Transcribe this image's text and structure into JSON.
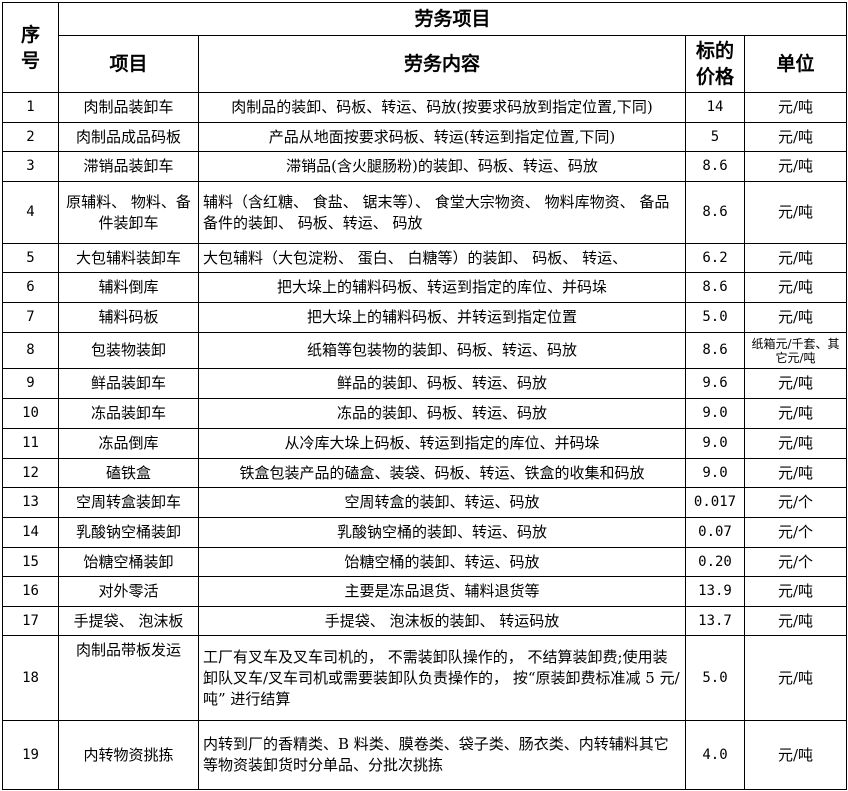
{
  "header": {
    "seq": "序号",
    "group": "劳务项目",
    "item": "项目",
    "content": "劳务内容",
    "price": "标的价格",
    "unit": "单位"
  },
  "rows": [
    {
      "no": "1",
      "item": "肉制品装卸车",
      "content": "肉制品的装卸、码板、转运、码放(按要求码放到指定位置,下同)",
      "price": "14",
      "unit": "元/吨"
    },
    {
      "no": "2",
      "item": "肉制品成品码板",
      "content": "产品从地面按要求码板、转运(转运到指定位置,下同)",
      "price": "5",
      "unit": "元/吨"
    },
    {
      "no": "3",
      "item": "滞销品装卸车",
      "content": "滞销品(含火腿肠粉)的装卸、码板、转运、码放",
      "price": "8.6",
      "unit": "元/吨"
    },
    {
      "no": "4",
      "item": "原辅料、 物料、备件装卸车",
      "content": "辅料（含红糖、 食盐、 锯末等）、 食堂大宗物资、 物料库物资、 备品备件的装卸、 码板、转运、 码放",
      "price": "8.6",
      "unit": "元/吨"
    },
    {
      "no": "5",
      "item": "大包辅料装卸车",
      "content": "大包辅料（大包淀粉、 蛋白、 白糖等）的装卸、 码板、 转运、",
      "price": "6.2",
      "unit": "元/吨"
    },
    {
      "no": "6",
      "item": "辅料倒库",
      "content": "把大垛上的辅料码板、转运到指定的库位、并码垛",
      "price": "8.6",
      "unit": "元/吨"
    },
    {
      "no": "7",
      "item": "辅料码板",
      "content": "把大垛上的辅料码板、并转运到指定位置",
      "price": "5.0",
      "unit": "元/吨"
    },
    {
      "no": "8",
      "item": "包装物装卸",
      "content": "纸箱等包装物的装卸、码板、转运、码放",
      "price": "8.6",
      "unit": "纸箱元/千套、其它元/吨"
    },
    {
      "no": "9",
      "item": "鲜品装卸车",
      "content": "鲜品的装卸、码板、转运、码放",
      "price": "9.6",
      "unit": "元/吨"
    },
    {
      "no": "10",
      "item": "冻品装卸车",
      "content": "冻品的装卸、码板、转运、码放",
      "price": "9.0",
      "unit": "元/吨"
    },
    {
      "no": "11",
      "item": "冻品倒库",
      "content": "从冷库大垛上码板、转运到指定的库位、并码垛",
      "price": "9.0",
      "unit": "元/吨"
    },
    {
      "no": "12",
      "item": "磕铁盒",
      "content": "铁盒包装产品的磕盒、装袋、码板、转运、铁盒的收集和码放",
      "price": "9.0",
      "unit": "元/吨"
    },
    {
      "no": "13",
      "item": "空周转盒装卸车",
      "content": "空周转盒的装卸、转运、码放",
      "price": "0.017",
      "unit": "元/个"
    },
    {
      "no": "14",
      "item": "乳酸钠空桶装卸",
      "content": "乳酸钠空桶的装卸、转运、码放",
      "price": "0.07",
      "unit": "元/个"
    },
    {
      "no": "15",
      "item": "饴糖空桶装卸",
      "content": "饴糖空桶的装卸、转运、码放",
      "price": "0.20",
      "unit": "元/个"
    },
    {
      "no": "16",
      "item": "对外零活",
      "content": "主要是冻品退货、辅料退货等",
      "price": "13.9",
      "unit": "元/吨"
    },
    {
      "no": "17",
      "item": "手提袋、 泡沫板",
      "content": "手提袋、 泡沫板的装卸、 转运码放",
      "price": "13.7",
      "unit": "元/吨"
    },
    {
      "no": "18",
      "item": "肉制品带板发运",
      "content": "工厂有叉车及叉车司机的， 不需装卸队操作的， 不结算装卸费;使用装卸队叉车/叉车司机或需要装卸队负责操作的， 按“原装卸费标准减 5 元/吨” 进行结算",
      "price": "5.0",
      "unit": "元/吨"
    },
    {
      "no": "19",
      "item": "内转物资挑拣",
      "content": "内转到厂的香精类、B 料类、膜卷类、袋子类、肠衣类、内转辅料其它等物资装卸货时分单品、分批次挑拣",
      "price": "4.0",
      "unit": "元/吨"
    }
  ]
}
